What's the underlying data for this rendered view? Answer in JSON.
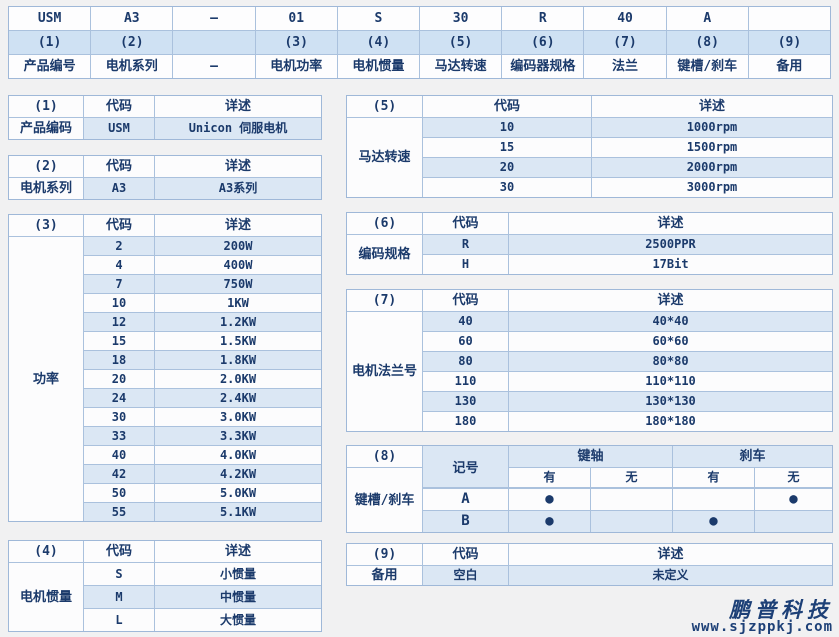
{
  "colors": {
    "page_bg": "#f1f1f2",
    "text": "#1b3a6b",
    "border": "#9fb8d8",
    "stripe_blue": "#dbe7f4",
    "band_blue": "#cfe1f3",
    "row_white": "#fcfcfd"
  },
  "model_table": {
    "codes": [
      "USM",
      "A3",
      "—",
      "01",
      "S",
      "30",
      "R",
      "40",
      "A",
      ""
    ],
    "indices": [
      "(1)",
      "(2)",
      "",
      "(3)",
      "(4)",
      "(5)",
      "(6)",
      "(7)",
      "(8)",
      "(9)"
    ],
    "labels": [
      "产品编号",
      "电机系列",
      "—",
      "电机功率",
      "电机惯量",
      "马达转速",
      "编码器规格",
      "法兰",
      "键槽/刹车",
      "备用"
    ]
  },
  "col_headers": {
    "code": "代码",
    "desc": "详述"
  },
  "tables": {
    "t1": {
      "id": "(1)",
      "label": "产品编码",
      "rows": [
        [
          "USM",
          "Unicon 伺服电机"
        ]
      ]
    },
    "t2": {
      "id": "(2)",
      "label": "电机系列",
      "rows": [
        [
          "A3",
          "A3系列"
        ]
      ]
    },
    "t3": {
      "id": "(3)",
      "label": "功率",
      "rows": [
        [
          "2",
          "200W"
        ],
        [
          "4",
          "400W"
        ],
        [
          "7",
          "750W"
        ],
        [
          "10",
          "1KW"
        ],
        [
          "12",
          "1.2KW"
        ],
        [
          "15",
          "1.5KW"
        ],
        [
          "18",
          "1.8KW"
        ],
        [
          "20",
          "2.0KW"
        ],
        [
          "24",
          "2.4KW"
        ],
        [
          "30",
          "3.0KW"
        ],
        [
          "33",
          "3.3KW"
        ],
        [
          "40",
          "4.0KW"
        ],
        [
          "42",
          "4.2KW"
        ],
        [
          "50",
          "5.0KW"
        ],
        [
          "55",
          "5.1KW"
        ]
      ]
    },
    "t4": {
      "id": "(4)",
      "label": "电机惯量",
      "rows": [
        [
          "S",
          "小惯量"
        ],
        [
          "M",
          "中惯量"
        ],
        [
          "L",
          "大惯量"
        ]
      ]
    },
    "t5": {
      "id": "(5)",
      "label": "马达转速",
      "rows": [
        [
          "10",
          "1000rpm"
        ],
        [
          "15",
          "1500rpm"
        ],
        [
          "20",
          "2000rpm"
        ],
        [
          "30",
          "3000rpm"
        ]
      ]
    },
    "t6": {
      "id": "(6)",
      "label": "编码规格",
      "rows": [
        [
          "R",
          "2500PPR"
        ],
        [
          "H",
          "17Bit"
        ]
      ]
    },
    "t7": {
      "id": "(7)",
      "label": "电机法兰号",
      "rows": [
        [
          "40",
          "40*40"
        ],
        [
          "60",
          "60*60"
        ],
        [
          "80",
          "80*80"
        ],
        [
          "110",
          "110*110"
        ],
        [
          "130",
          "130*130"
        ],
        [
          "180",
          "180*180"
        ]
      ]
    },
    "t8": {
      "id": "(8)",
      "label": "键槽/刹车",
      "col_mark": "记号",
      "group_keyshaft": "键轴",
      "group_brake": "刹车",
      "yes": "有",
      "no": "无",
      "rows": [
        [
          "A",
          "●",
          "",
          "",
          "●"
        ],
        [
          "B",
          "●",
          "",
          "●",
          ""
        ]
      ]
    },
    "t9": {
      "id": "(9)",
      "label": "备用",
      "rows": [
        [
          "空白",
          "未定义"
        ]
      ]
    }
  },
  "watermark": {
    "brand": "鹏普科技",
    "site": "www.sjzppkj.com"
  }
}
